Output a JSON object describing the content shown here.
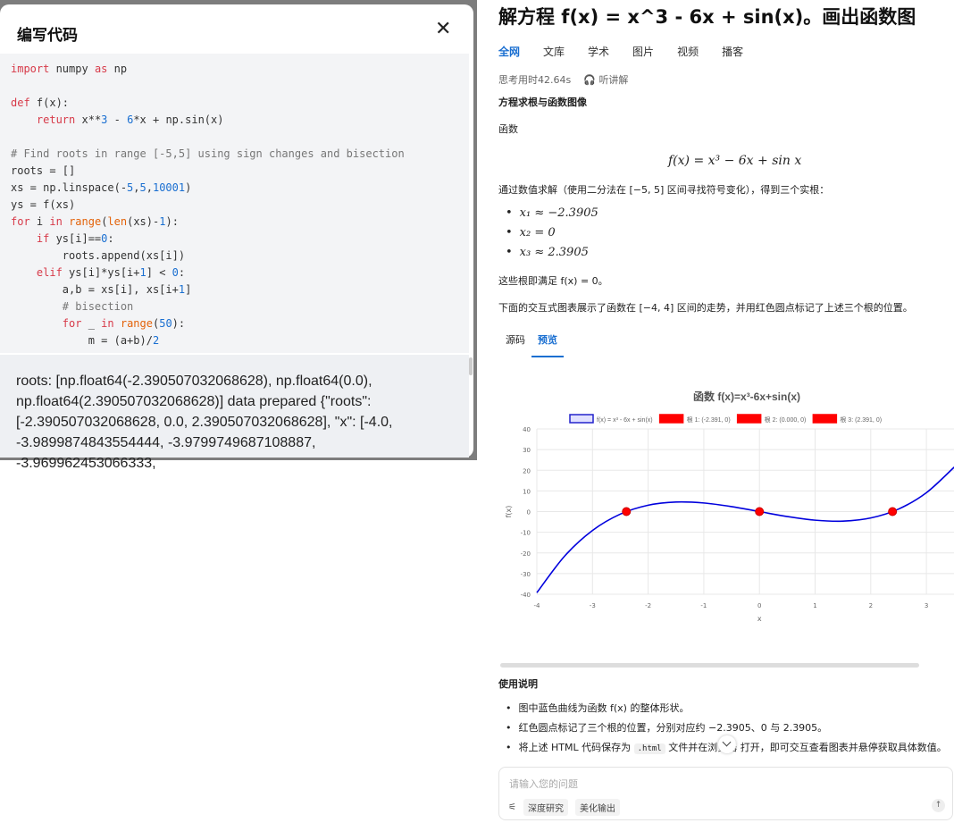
{
  "modal": {
    "title": "编写代码",
    "close_icon": "close-icon",
    "code_lines": [
      "import numpy as np",
      "",
      "def f(x):",
      "    return x**3 - 6*x + np.sin(x)",
      "",
      "# Find roots in range [-5,5] using sign changes and bisection",
      "roots = []",
      "xs = np.linspace(-5,5,10001)",
      "ys = f(xs)",
      "for i in range(len(xs)-1):",
      "    if ys[i]==0:",
      "        roots.append(xs[i])",
      "    elif ys[i]*ys[i+1] < 0:",
      "        a,b = xs[i], xs[i+1]",
      "        # bisection",
      "        for _ in range(50):",
      "            m = (a+b)/2"
    ],
    "output": "roots: [np.float64(-2.390507032068628), np.float64(0.0), np.float64(2.390507032068628)] data prepared {\"roots\": [-2.390507032068628, 0.0, 2.390507032068628], \"x\": [-4.0, -3.9899874843554444, -3.9799749687108887, -3.969962453066333,"
  },
  "page": {
    "title": "解方程 f(x) = x^3 - 6x + sin(x)。画出函数图",
    "tabs": [
      "全网",
      "文库",
      "学术",
      "图片",
      "视频",
      "播客"
    ],
    "think_time": "思考用时42.64s",
    "listen": "听讲解",
    "headphone_icon": "headphone-icon",
    "heading": "方程求根与函数图像",
    "label_func": "函数",
    "formula": "f(x) = x³ − 6x + sin x",
    "method": "通过数值求解（使用二分法在 [−5, 5] 区间寻找符号变化），得到三个实根：",
    "roots": [
      "x₁ ≈ −2.3905",
      "x₂ = 0",
      "x₃ ≈ 2.3905"
    ],
    "satisfy": "这些根即满足 f(x) = 0。",
    "desc": "下面的交互式图表展示了函数在 [−4, 4] 区间的走势，并用红色圆点标记了上述三个根的位置。",
    "preview_tabs": [
      "源码",
      "预览"
    ],
    "usage_title": "使用说明",
    "usage": [
      "图中蓝色曲线为函数 f(x) 的整体形状。",
      "红色圆点标记了三个根的位置，分别对应约 −2.3905、0 与 2.3905。"
    ],
    "usage3_a": "将上述 HTML 代码保存为",
    "usage3_code": ".html",
    "usage3_b": "文件并在浏览器",
    "usage3_c": "打开，即可交互查看图表并悬停获取具体数值。",
    "input_placeholder": "请输入您的问题",
    "chips": [
      "深度研究",
      "美化输出"
    ]
  },
  "chart_data": {
    "type": "line",
    "title": "函数 f(x)=x³-6x+sin(x)",
    "xlabel": "x",
    "ylabel": "f(x)",
    "xlim": [
      -4,
      3.5
    ],
    "ylim": [
      -40,
      40
    ],
    "grid": true,
    "legend": "top",
    "xticks": [
      -4,
      -3,
      -2,
      -1,
      0,
      1,
      2,
      3
    ],
    "yticks": [
      40,
      30,
      20,
      10,
      0,
      -10,
      -20,
      -30,
      -40
    ],
    "series": [
      {
        "name": "f(x) = x³ - 6x + sin(x)",
        "color": "#0000dd",
        "x": [
          -4,
          -3.5,
          -3,
          -2.5,
          -2,
          -1.5,
          -1,
          -0.5,
          0,
          0.5,
          1,
          1.5,
          2,
          2.5,
          3,
          3.5
        ],
        "y": [
          -39.24,
          -21.52,
          -9.14,
          -1.22,
          3.09,
          4.63,
          4.16,
          2.4,
          0,
          -2.4,
          -4.16,
          -4.63,
          -3.09,
          1.22,
          9.14,
          21.52
        ]
      }
    ],
    "points": [
      {
        "name": "根 1: (-2.391, 0)",
        "x": -2.391,
        "y": 0,
        "color": "#ff0000"
      },
      {
        "name": "根 2: (0.000, 0)",
        "x": 0,
        "y": 0,
        "color": "#ff0000"
      },
      {
        "name": "根 3: (2.391, 0)",
        "x": 2.391,
        "y": 0,
        "color": "#ff0000"
      }
    ]
  }
}
